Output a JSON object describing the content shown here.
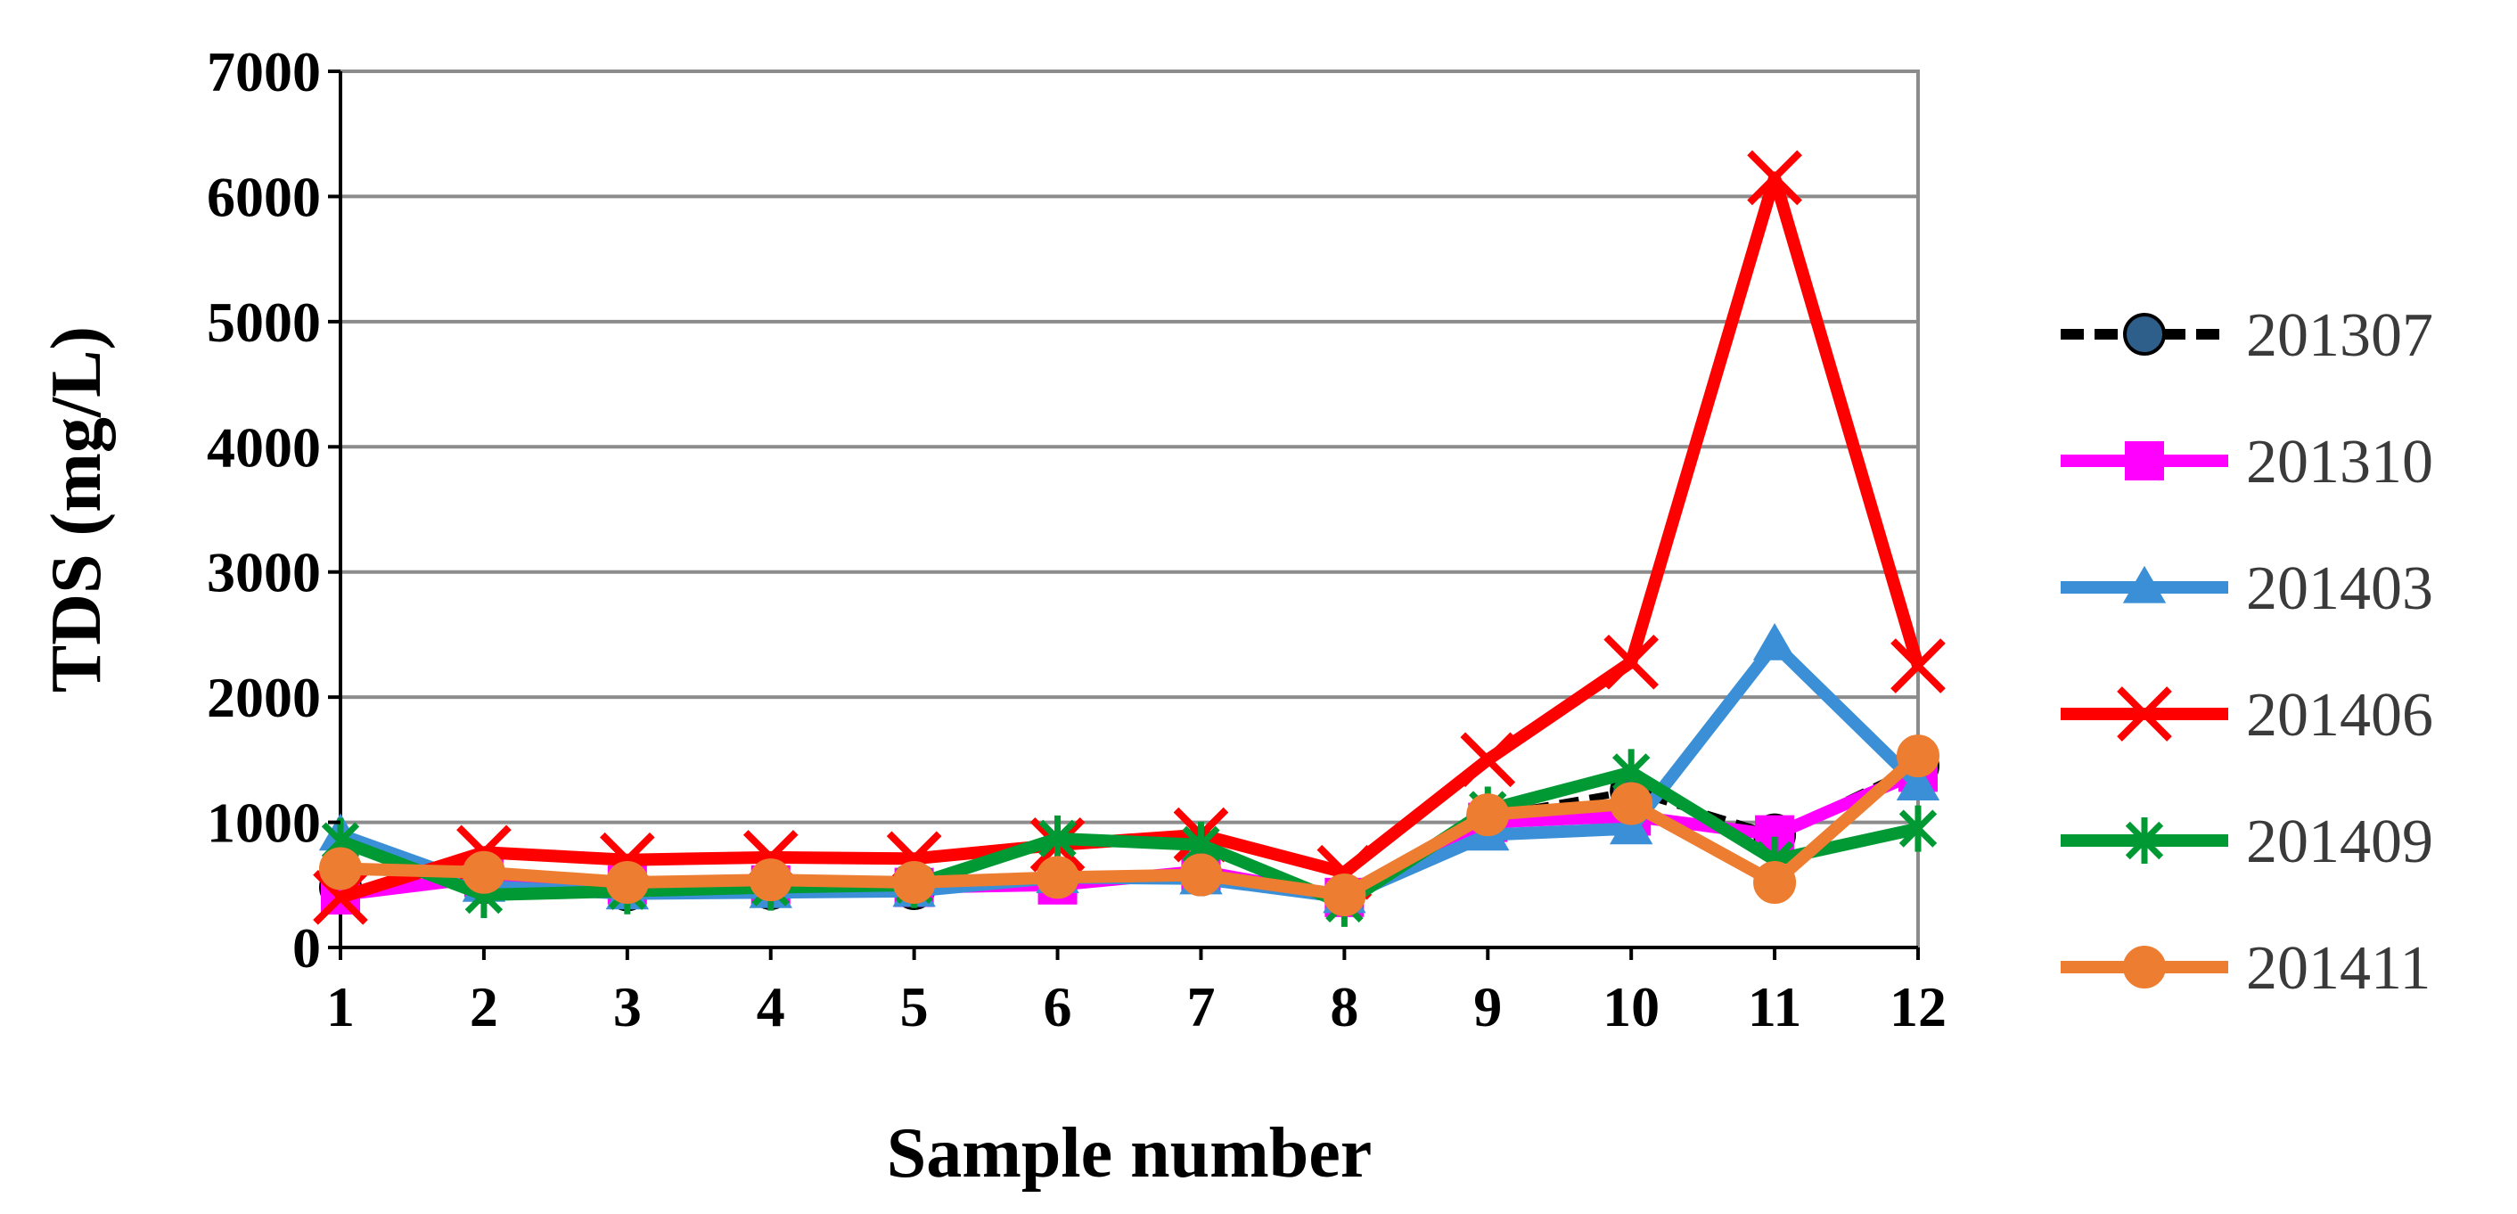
{
  "chart_data": {
    "type": "line",
    "xlabel": "Sample number",
    "ylabel": "TDS (mg/L)",
    "categories": [
      "1",
      "2",
      "3",
      "4",
      "5",
      "6",
      "7",
      "8",
      "9",
      "10",
      "11",
      "12"
    ],
    "ylim": [
      0,
      7000
    ],
    "yticks": [
      "0",
      "1000",
      "2000",
      "3000",
      "4000",
      "5000",
      "6000",
      "7000"
    ],
    "grid": true,
    "legend_position": "right",
    "series": [
      {
        "name": "201307",
        "color": "#000000",
        "marker_color": "#2e5f8a",
        "dashed": true,
        "marker": "circle",
        "values": [
          480,
          520,
          460,
          470,
          470,
          540,
          580,
          420,
          1050,
          1250,
          900,
          1450
        ]
      },
      {
        "name": "201310",
        "color": "#ff00ff",
        "dashed": false,
        "marker": "square",
        "values": [
          420,
          560,
          500,
          500,
          480,
          500,
          610,
          400,
          1000,
          1050,
          900,
          1400
        ]
      },
      {
        "name": "201403",
        "color": "#3b8fd6",
        "dashed": false,
        "marker": "triangle",
        "values": [
          900,
          490,
          430,
          440,
          450,
          560,
          550,
          400,
          900,
          950,
          2420,
          1300
        ]
      },
      {
        "name": "201406",
        "color": "#ff0000",
        "dashed": false,
        "marker": "x",
        "values": [
          400,
          760,
          700,
          720,
          710,
          820,
          900,
          600,
          1500,
          2280,
          6150,
          2250
        ]
      },
      {
        "name": "201409",
        "color": "#009933",
        "dashed": false,
        "marker": "asterisk",
        "values": [
          850,
          420,
          450,
          480,
          500,
          870,
          820,
          350,
          1100,
          1400,
          700,
          950
        ]
      },
      {
        "name": "201411",
        "color": "#ed7d31",
        "dashed": false,
        "marker": "circle",
        "values": [
          630,
          600,
          520,
          540,
          520,
          560,
          580,
          420,
          1060,
          1150,
          520,
          1530
        ]
      }
    ]
  }
}
